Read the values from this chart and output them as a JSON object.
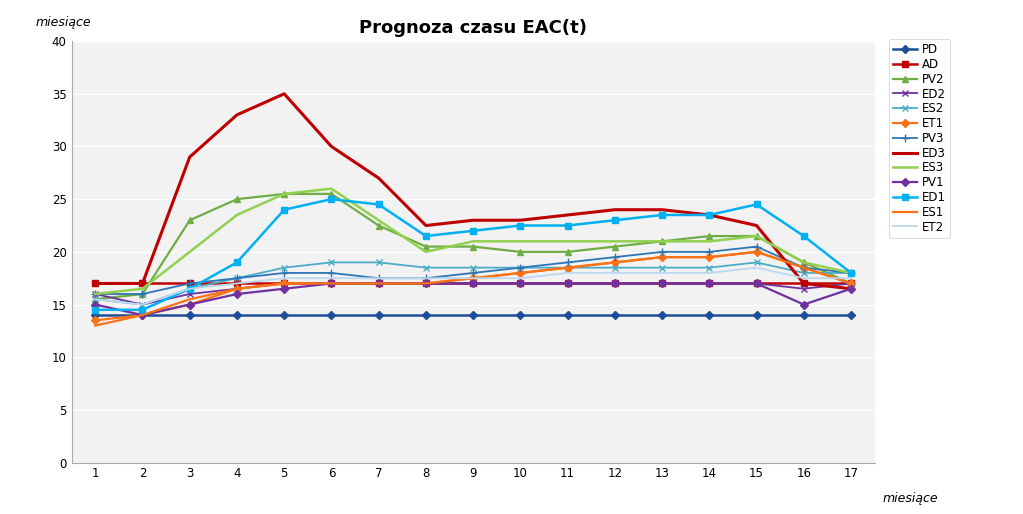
{
  "title": "Prognoza czasu EAC(t)",
  "xlabel": "miesiące",
  "ylabel": "miesiące",
  "ylim": [
    0,
    40
  ],
  "yticks": [
    0,
    5,
    10,
    15,
    20,
    25,
    30,
    35,
    40
  ],
  "xticks": [
    1,
    2,
    3,
    4,
    5,
    6,
    7,
    8,
    9,
    10,
    11,
    12,
    13,
    14,
    15,
    16,
    17
  ],
  "series": [
    {
      "name": "PD",
      "color": "#1f4e99",
      "marker": "D",
      "markersize": 4,
      "linewidth": 1.8,
      "data": [
        14,
        14,
        14,
        14,
        14,
        14,
        14,
        14,
        14,
        14,
        14,
        14,
        14,
        14,
        14,
        14,
        14
      ]
    },
    {
      "name": "AD",
      "color": "#c00000",
      "marker": "s",
      "markersize": 5,
      "linewidth": 1.8,
      "data": [
        17,
        17,
        17,
        17,
        17,
        17,
        17,
        17,
        17,
        17,
        17,
        17,
        17,
        17,
        17,
        17,
        17
      ]
    },
    {
      "name": "PV2",
      "color": "#70ad47",
      "marker": "^",
      "markersize": 5,
      "linewidth": 1.6,
      "data": [
        15.5,
        16,
        23,
        25,
        25.5,
        25.5,
        22.5,
        20.5,
        20.5,
        20,
        20,
        20.5,
        21,
        21.5,
        21.5,
        19,
        17
      ]
    },
    {
      "name": "ED2",
      "color": "#7030a0",
      "marker": "x",
      "markersize": 5,
      "linewidth": 1.3,
      "data": [
        16,
        15,
        16,
        16.5,
        17,
        17,
        17,
        17,
        17,
        17,
        17,
        17,
        17,
        17,
        17,
        16.5,
        17
      ]
    },
    {
      "name": "ES2",
      "color": "#4bacc6",
      "marker": "x",
      "markersize": 5,
      "linewidth": 1.3,
      "data": [
        15.5,
        15,
        16.5,
        17.5,
        18.5,
        19,
        19,
        18.5,
        18.5,
        18.5,
        18.5,
        18.5,
        18.5,
        18.5,
        19,
        18,
        18
      ]
    },
    {
      "name": "ET1",
      "color": "#f97316",
      "marker": "D",
      "markersize": 4,
      "linewidth": 1.6,
      "data": [
        13.5,
        14,
        15,
        16.5,
        17,
        17,
        17,
        17,
        17.5,
        18,
        18.5,
        19,
        19.5,
        19.5,
        20,
        18.5,
        17
      ]
    },
    {
      "name": "PV3",
      "color": "#2e75b6",
      "marker": "+",
      "markersize": 6,
      "linewidth": 1.3,
      "data": [
        16,
        16,
        17,
        17.5,
        18,
        18,
        17.5,
        17.5,
        18,
        18.5,
        19,
        19.5,
        20,
        20,
        20.5,
        18.5,
        18
      ]
    },
    {
      "name": "ED3",
      "color": "#be0000",
      "marker": "None",
      "markersize": 0,
      "linewidth": 2.2,
      "data": [
        17,
        17,
        29,
        33,
        35,
        30,
        27,
        22.5,
        23,
        23,
        23.5,
        24,
        24,
        23.5,
        22.5,
        17,
        16.5
      ]
    },
    {
      "name": "ES3",
      "color": "#92d050",
      "marker": "None",
      "markersize": 0,
      "linewidth": 1.8,
      "data": [
        16,
        16.5,
        20,
        23.5,
        25.5,
        26,
        23,
        20,
        21,
        21,
        21,
        21,
        21,
        21,
        21.5,
        19,
        18
      ]
    },
    {
      "name": "PV1",
      "color": "#7030a0",
      "marker": "D",
      "markersize": 4,
      "linewidth": 1.6,
      "data": [
        15,
        14,
        15,
        16,
        16.5,
        17,
        17,
        17,
        17,
        17,
        17,
        17,
        17,
        17,
        17,
        15,
        16.5
      ]
    },
    {
      "name": "ED1",
      "color": "#00b0f0",
      "marker": "s",
      "markersize": 5,
      "linewidth": 1.8,
      "data": [
        14.5,
        14.5,
        16.5,
        19,
        24,
        25,
        24.5,
        21.5,
        22,
        22.5,
        22.5,
        23,
        23.5,
        23.5,
        24.5,
        21.5,
        18
      ]
    },
    {
      "name": "ES1",
      "color": "#f97316",
      "marker": "None",
      "markersize": 0,
      "linewidth": 1.6,
      "data": [
        13,
        14,
        15.5,
        16.5,
        17,
        17,
        17,
        17,
        17.5,
        18,
        18.5,
        19,
        19.5,
        19.5,
        20,
        18.5,
        17
      ]
    },
    {
      "name": "ET2",
      "color": "#bdd7ee",
      "marker": "None",
      "markersize": 0,
      "linewidth": 1.3,
      "data": [
        15.5,
        15,
        16.5,
        17,
        17.5,
        17.5,
        17.5,
        17.5,
        17.5,
        17.5,
        18,
        18,
        18,
        18,
        18.5,
        17.5,
        17.5
      ]
    }
  ]
}
